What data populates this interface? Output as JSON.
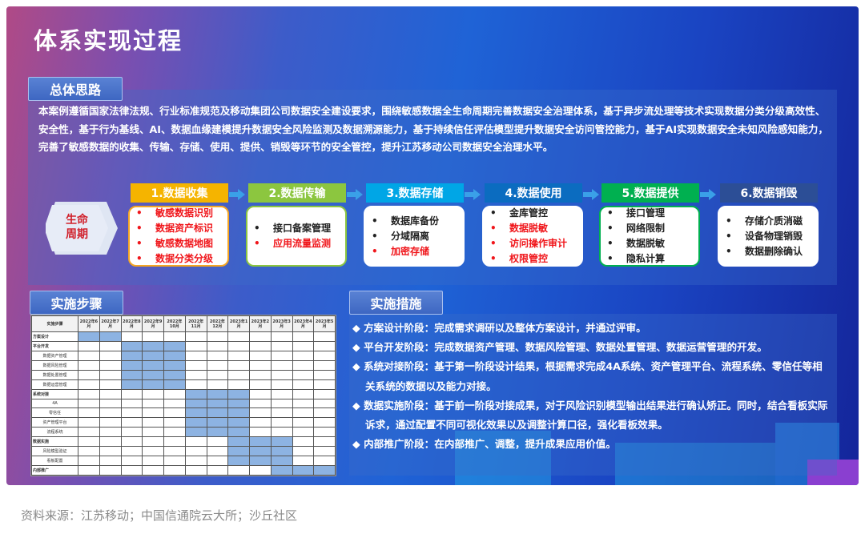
{
  "title": "体系实现过程",
  "overview": {
    "tab": "总体思路",
    "text": "本案例遵循国家法律法规、行业标准规范及移动集团公司数据安全建设要求，围绕敏感数据全生命周期完善数据安全治理体系，基于异步流处理等技术实现数据分类分级高效性、安全性，基于行为基线、AI、数据血缘建模提升数据安全风险监测及数据溯源能力，基于持续信任评估模型提升数据安全访问管控能力，基于AI实现数据安全未知风险感知能力，完善了敏感数据的收集、传输、存储、使用、提供、销毁等环节的安全管控，提升江苏移动公司数据安全治理水平。"
  },
  "lifecycle": {
    "label_line1": "生命",
    "label_line2": "周期",
    "label_color": "#d01f2a",
    "stages": [
      {
        "title": "1.数据收集",
        "color": "#f5b400",
        "border": "#f5a623",
        "items": [
          {
            "t": "敏感数据识别",
            "red": true
          },
          {
            "t": "数据资产标识",
            "red": true
          },
          {
            "t": "敏感数据地图",
            "red": true
          },
          {
            "t": "数据分类分级",
            "red": true
          }
        ]
      },
      {
        "title": "2.数据传输",
        "color": "#8cc63f",
        "border": "#8cc63f",
        "items": [
          {
            "t": "接口备案管理",
            "red": false
          },
          {
            "t": "应用流量监测",
            "red": true
          }
        ]
      },
      {
        "title": "3.数据存储",
        "color": "#00a6e6",
        "border": "#ffffff",
        "items": [
          {
            "t": "数据库备份",
            "red": false
          },
          {
            "t": "分域隔离",
            "red": false
          },
          {
            "t": "加密存储",
            "red": true
          }
        ]
      },
      {
        "title": "4.数据使用",
        "color": "#0b6cc0",
        "border": "#ffffff",
        "items": [
          {
            "t": "金库管控",
            "red": false
          },
          {
            "t": "数据脱敏",
            "red": true
          },
          {
            "t": "访问操作审计",
            "red": true
          },
          {
            "t": "权限管控",
            "red": true
          }
        ]
      },
      {
        "title": "5.数据提供",
        "color": "#00b050",
        "border": "#00b050",
        "items": [
          {
            "t": "接口管理",
            "red": false
          },
          {
            "t": "网络限制",
            "red": false
          },
          {
            "t": "数据脱敏",
            "red": false
          },
          {
            "t": "隐私计算",
            "red": false
          }
        ]
      },
      {
        "title": "6.数据销毁",
        "color": "#2c4e96",
        "border": "#ffffff",
        "items": [
          {
            "t": "存储介质消磁",
            "red": false
          },
          {
            "t": "设备物理销毁",
            "red": false
          },
          {
            "t": "数据删除确认",
            "red": false
          }
        ]
      }
    ]
  },
  "steps": {
    "tab": "实施步骤",
    "header": "实施步骤",
    "fill_color": "#8db3e2",
    "months": [
      "2022年6月",
      "2022年7月",
      "2022年8月",
      "2022年9月",
      "2022年10月",
      "2022年11月",
      "2022年12月",
      "2023年1月",
      "2023年2月",
      "2023年3月",
      "2023年4月",
      "2023年5月"
    ],
    "rows": [
      {
        "name": "方案设计",
        "sub": false,
        "start": 0,
        "end": 1
      },
      {
        "name": "平台开发",
        "sub": false,
        "start": 2,
        "end": 4
      },
      {
        "name": "数据资产管理",
        "sub": true,
        "start": 2,
        "end": 4
      },
      {
        "name": "数据风险管理",
        "sub": true,
        "start": 2,
        "end": 4
      },
      {
        "name": "数据处置管理",
        "sub": true,
        "start": 2,
        "end": 4
      },
      {
        "name": "数据运营管理",
        "sub": true,
        "start": 2,
        "end": 4
      },
      {
        "name": "系统对接",
        "sub": false,
        "start": 5,
        "end": 7
      },
      {
        "name": "4A",
        "sub": true,
        "start": 5,
        "end": 7
      },
      {
        "name": "零信任",
        "sub": true,
        "start": 5,
        "end": 7
      },
      {
        "name": "资产管理平台",
        "sub": true,
        "start": 5,
        "end": 7
      },
      {
        "name": "流程系统",
        "sub": true,
        "start": 5,
        "end": 7
      },
      {
        "name": "数据实施",
        "sub": false,
        "start": 7,
        "end": 9
      },
      {
        "name": "风险模型验证",
        "sub": true,
        "start": 7,
        "end": 9
      },
      {
        "name": "看板配置",
        "sub": true,
        "start": 7,
        "end": 9
      },
      {
        "name": "内部推广",
        "sub": false,
        "start": 9,
        "end": 11
      }
    ]
  },
  "measures": {
    "tab": "实施措施",
    "bullet": "◆",
    "items": [
      "方案设计阶段：完成需求调研以及整体方案设计，并通过评审。",
      "平台开发阶段：完成数据资产管理、数据风险管理、数据处置管理、数据运营管理的开发。",
      "系统对接阶段：基于第一阶段设计结果，根据需求完成4A系统、资产管理平台、流程系统、零信任等相关系统的数据以及能力对接。",
      "数据实施阶段：基于前一阶段对接成果，对于风险识别模型输出结果进行确认矫正。同时，结合看板实际诉求，通过配置不同可视化效果以及调整计算口径，强化看板效果。",
      "内部推广阶段：在内部推广、调整，提升成果应用价值。"
    ]
  },
  "source": "资料来源：江苏移动；中国信通院云大所；沙丘社区"
}
